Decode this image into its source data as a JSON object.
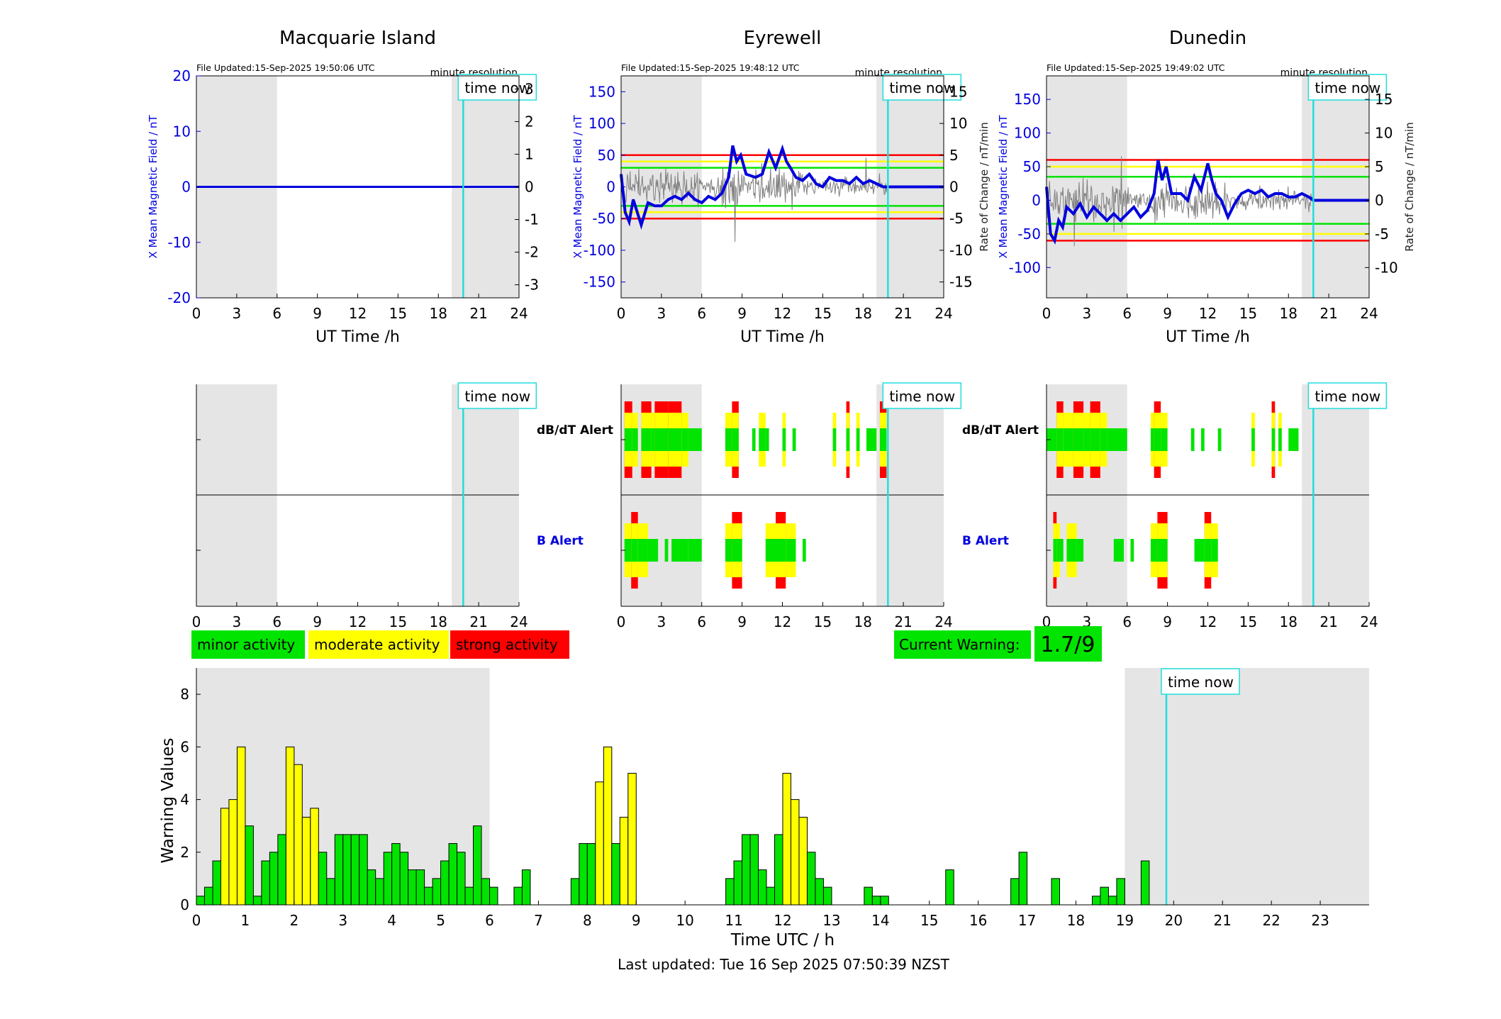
{
  "colors": {
    "shade": "#e5e5e5",
    "time_now": "#22dddd",
    "blue": "#0000dd",
    "minor": "#00e400",
    "moderate": "#ffff00",
    "strong": "#ff0000",
    "noise": "#808080"
  },
  "stations": [
    {
      "title": "Macquarie Island",
      "file_updated": "File Updated:15-Sep-2025 19:50:06 UTC",
      "resolution": "minute resolution",
      "ylabel_left": "X Mean Magnetic Field / nT",
      "ylabel_right": "",
      "xlabel": "UT Time /h",
      "ylim_left": [
        -20,
        20
      ],
      "yticks_left": [
        "20",
        "10",
        "0",
        "-10",
        "-20"
      ],
      "yticks_right": [
        "3",
        "2",
        "1",
        "0",
        "-1",
        "-2",
        "-3"
      ],
      "rate_ylim": [
        -3.4,
        3.4
      ],
      "threshold_lines": [],
      "has_data": false,
      "alert_labels": [
        "",
        ""
      ]
    },
    {
      "title": "Eyrewell",
      "file_updated": "File Updated:15-Sep-2025 19:48:12 UTC",
      "resolution": "minute resolution",
      "ylabel_left": "X Mean Magnetic Field / nT",
      "ylabel_right": "Rate of Change / nT/min",
      "xlabel": "UT Time /h",
      "ylim_left": [
        -175,
        175
      ],
      "yticks_left": [
        "150",
        "100",
        "50",
        "0",
        "-50",
        "-100",
        "-150"
      ],
      "yticks_right": [
        "15",
        "10",
        "5",
        "0",
        "-5",
        "-10",
        "-15"
      ],
      "rate_ylim": [
        -17.5,
        17.5
      ],
      "threshold_lines": [
        {
          "value": 50,
          "level": "strong"
        },
        {
          "value": -50,
          "level": "strong"
        },
        {
          "value": 40,
          "level": "moderate"
        },
        {
          "value": -40,
          "level": "moderate"
        },
        {
          "value": 30,
          "level": "minor"
        },
        {
          "value": -30,
          "level": "minor"
        }
      ],
      "has_data": true,
      "alert_labels": [
        "dB/dT Alert",
        "B Alert"
      ]
    },
    {
      "title": "Dunedin",
      "file_updated": "File Updated:15-Sep-2025 19:49:02 UTC",
      "resolution": "minute resolution",
      "ylabel_left": "X Mean Magnetic Field / nT",
      "ylabel_right": "Rate of Change / nT/min",
      "xlabel": "UT Time /h",
      "ylim_left": [
        -145,
        185
      ],
      "yticks_left": [
        "150",
        "100",
        "50",
        "0",
        "-50",
        "-100"
      ],
      "yticks_right": [
        "15",
        "10",
        "5",
        "0",
        "-5",
        "-10"
      ],
      "rate_ylim": [
        -14.5,
        18.5
      ],
      "threshold_lines": [
        {
          "value": 60,
          "level": "strong"
        },
        {
          "value": -60,
          "level": "strong"
        },
        {
          "value": 50,
          "level": "moderate"
        },
        {
          "value": -50,
          "level": "moderate"
        },
        {
          "value": 35,
          "level": "minor"
        },
        {
          "value": -35,
          "level": "minor"
        }
      ],
      "has_data": true,
      "alert_labels": [
        "dB/dT Alert",
        "B Alert"
      ]
    }
  ],
  "time_now_label": "time now",
  "time_now_hour": 19.85,
  "shade_ranges": [
    [
      0,
      6
    ],
    [
      19,
      24
    ]
  ],
  "xticks": [
    "0",
    "3",
    "6",
    "9",
    "12",
    "15",
    "18",
    "21",
    "24"
  ],
  "legend": {
    "minor": "minor activity",
    "moderate": "moderate activity",
    "strong": "strong activity"
  },
  "current_warning": {
    "label": "Current Warning:",
    "value": "1.7/9"
  },
  "chart_data": [
    {
      "type": "line",
      "station": "Eyrewell",
      "series": [
        {
          "values_x_hours": [
            0,
            0.3,
            0.6,
            0.9,
            1.2,
            1.5,
            2,
            2.5,
            3,
            3.5,
            4,
            4.5,
            5,
            5.5,
            6,
            6.5,
            7,
            7.5,
            8,
            8.3,
            8.6,
            8.9,
            9.3,
            10,
            10.5,
            11,
            11.5,
            12,
            12.3,
            12.6,
            13,
            13.5,
            14,
            14.5,
            15,
            15.5,
            16,
            16.5,
            17,
            17.5,
            18,
            18.5,
            19,
            19.5,
            19.85,
            24
          ],
          "values_y": [
            20,
            -40,
            -55,
            -20,
            -40,
            -60,
            -25,
            -30,
            -30,
            -20,
            -15,
            -20,
            -10,
            -20,
            -25,
            -15,
            -20,
            -10,
            15,
            65,
            40,
            50,
            20,
            15,
            20,
            55,
            30,
            60,
            40,
            30,
            15,
            10,
            20,
            5,
            0,
            15,
            10,
            10,
            5,
            15,
            5,
            10,
            5,
            0,
            0,
            0
          ]
        }
      ]
    },
    {
      "type": "line",
      "station": "Dunedin",
      "series": [
        {
          "values_x_hours": [
            0,
            0.3,
            0.6,
            0.9,
            1.2,
            1.5,
            2,
            2.5,
            3,
            3.5,
            4,
            4.5,
            5,
            5.5,
            6,
            6.5,
            7,
            7.5,
            8,
            8.3,
            8.6,
            8.9,
            9.3,
            10,
            10.5,
            11,
            11.5,
            12,
            12.3,
            12.6,
            13,
            13.5,
            14,
            14.5,
            15,
            15.5,
            16,
            16.5,
            17,
            17.5,
            18,
            18.5,
            19,
            19.5,
            19.85,
            24
          ],
          "values_y": [
            20,
            -50,
            -60,
            -30,
            -40,
            -10,
            -20,
            -5,
            -25,
            -10,
            -20,
            -30,
            -20,
            -30,
            -20,
            -10,
            -25,
            -15,
            10,
            60,
            30,
            50,
            10,
            10,
            0,
            35,
            15,
            55,
            30,
            10,
            0,
            -25,
            -5,
            10,
            15,
            10,
            15,
            5,
            10,
            10,
            5,
            5,
            10,
            5,
            0,
            0
          ]
        }
      ]
    },
    {
      "type": "bar",
      "title": "",
      "xlabel": "Time UTC / h",
      "ylabel": "Warning Values",
      "xlim": [
        0,
        24
      ],
      "ylim": [
        0,
        9
      ],
      "yticks": [
        0,
        2,
        4,
        6,
        8
      ],
      "xticks": [
        "0",
        "1",
        "2",
        "3",
        "4",
        "5",
        "6",
        "7",
        "8",
        "9",
        "10",
        "11",
        "12",
        "13",
        "14",
        "15",
        "16",
        "17",
        "18",
        "19",
        "20",
        "21",
        "22",
        "23"
      ],
      "bar_width_hours": 0.1667,
      "bars": [
        {
          "x": 0.083,
          "v": 0.33,
          "c": "minor"
        },
        {
          "x": 0.25,
          "v": 0.67,
          "c": "minor"
        },
        {
          "x": 0.417,
          "v": 1.67,
          "c": "minor"
        },
        {
          "x": 0.583,
          "v": 3.67,
          "c": "moderate"
        },
        {
          "x": 0.75,
          "v": 4.0,
          "c": "moderate"
        },
        {
          "x": 0.917,
          "v": 6.0,
          "c": "moderate"
        },
        {
          "x": 1.083,
          "v": 3.0,
          "c": "minor"
        },
        {
          "x": 1.25,
          "v": 0.33,
          "c": "minor"
        },
        {
          "x": 1.417,
          "v": 1.67,
          "c": "minor"
        },
        {
          "x": 1.583,
          "v": 2.0,
          "c": "minor"
        },
        {
          "x": 1.75,
          "v": 2.67,
          "c": "minor"
        },
        {
          "x": 1.917,
          "v": 6.0,
          "c": "moderate"
        },
        {
          "x": 2.083,
          "v": 5.33,
          "c": "moderate"
        },
        {
          "x": 2.25,
          "v": 3.33,
          "c": "moderate"
        },
        {
          "x": 2.417,
          "v": 3.67,
          "c": "moderate"
        },
        {
          "x": 2.583,
          "v": 2.0,
          "c": "minor"
        },
        {
          "x": 2.75,
          "v": 1.0,
          "c": "minor"
        },
        {
          "x": 2.917,
          "v": 2.67,
          "c": "minor"
        },
        {
          "x": 3.083,
          "v": 2.67,
          "c": "minor"
        },
        {
          "x": 3.25,
          "v": 2.67,
          "c": "minor"
        },
        {
          "x": 3.417,
          "v": 2.67,
          "c": "minor"
        },
        {
          "x": 3.583,
          "v": 1.33,
          "c": "minor"
        },
        {
          "x": 3.75,
          "v": 1.0,
          "c": "minor"
        },
        {
          "x": 3.917,
          "v": 2.0,
          "c": "minor"
        },
        {
          "x": 4.083,
          "v": 2.33,
          "c": "minor"
        },
        {
          "x": 4.25,
          "v": 2.0,
          "c": "minor"
        },
        {
          "x": 4.417,
          "v": 1.33,
          "c": "minor"
        },
        {
          "x": 4.583,
          "v": 1.33,
          "c": "minor"
        },
        {
          "x": 4.75,
          "v": 0.67,
          "c": "minor"
        },
        {
          "x": 4.917,
          "v": 1.0,
          "c": "minor"
        },
        {
          "x": 5.083,
          "v": 1.67,
          "c": "minor"
        },
        {
          "x": 5.25,
          "v": 2.33,
          "c": "minor"
        },
        {
          "x": 5.417,
          "v": 2.0,
          "c": "minor"
        },
        {
          "x": 5.583,
          "v": 0.67,
          "c": "minor"
        },
        {
          "x": 5.75,
          "v": 3.0,
          "c": "minor"
        },
        {
          "x": 5.917,
          "v": 1.0,
          "c": "minor"
        },
        {
          "x": 6.083,
          "v": 0.67,
          "c": "minor"
        },
        {
          "x": 6.583,
          "v": 0.67,
          "c": "minor"
        },
        {
          "x": 6.75,
          "v": 1.33,
          "c": "minor"
        },
        {
          "x": 7.75,
          "v": 1.0,
          "c": "minor"
        },
        {
          "x": 7.917,
          "v": 2.33,
          "c": "minor"
        },
        {
          "x": 8.083,
          "v": 2.33,
          "c": "minor"
        },
        {
          "x": 8.25,
          "v": 4.67,
          "c": "moderate"
        },
        {
          "x": 8.417,
          "v": 6.0,
          "c": "moderate"
        },
        {
          "x": 8.583,
          "v": 2.33,
          "c": "minor"
        },
        {
          "x": 8.75,
          "v": 3.33,
          "c": "moderate"
        },
        {
          "x": 8.917,
          "v": 5.0,
          "c": "moderate"
        },
        {
          "x": 10.917,
          "v": 1.0,
          "c": "minor"
        },
        {
          "x": 11.083,
          "v": 1.67,
          "c": "minor"
        },
        {
          "x": 11.25,
          "v": 2.67,
          "c": "minor"
        },
        {
          "x": 11.417,
          "v": 2.67,
          "c": "minor"
        },
        {
          "x": 11.583,
          "v": 1.33,
          "c": "minor"
        },
        {
          "x": 11.75,
          "v": 0.67,
          "c": "minor"
        },
        {
          "x": 11.917,
          "v": 2.67,
          "c": "minor"
        },
        {
          "x": 12.083,
          "v": 5.0,
          "c": "moderate"
        },
        {
          "x": 12.25,
          "v": 4.0,
          "c": "moderate"
        },
        {
          "x": 12.417,
          "v": 3.33,
          "c": "moderate"
        },
        {
          "x": 12.583,
          "v": 2.0,
          "c": "minor"
        },
        {
          "x": 12.75,
          "v": 1.0,
          "c": "minor"
        },
        {
          "x": 12.917,
          "v": 0.67,
          "c": "minor"
        },
        {
          "x": 13.75,
          "v": 0.67,
          "c": "minor"
        },
        {
          "x": 13.917,
          "v": 0.33,
          "c": "minor"
        },
        {
          "x": 14.083,
          "v": 0.33,
          "c": "minor"
        },
        {
          "x": 15.417,
          "v": 1.33,
          "c": "minor"
        },
        {
          "x": 16.75,
          "v": 1.0,
          "c": "minor"
        },
        {
          "x": 16.917,
          "v": 2.0,
          "c": "minor"
        },
        {
          "x": 17.583,
          "v": 1.0,
          "c": "minor"
        },
        {
          "x": 18.417,
          "v": 0.33,
          "c": "minor"
        },
        {
          "x": 18.583,
          "v": 0.67,
          "c": "minor"
        },
        {
          "x": 18.75,
          "v": 0.33,
          "c": "minor"
        },
        {
          "x": 18.917,
          "v": 1.0,
          "c": "minor"
        },
        {
          "x": 19.417,
          "v": 1.67,
          "c": "minor"
        }
      ]
    }
  ],
  "alerts": {
    "Eyrewell": {
      "dbdt": [
        [
          0.25,
          0.83,
          "strong"
        ],
        [
          0.83,
          1.25,
          "moderate"
        ],
        [
          1.5,
          2.25,
          "strong"
        ],
        [
          2.25,
          2.5,
          "moderate"
        ],
        [
          2.5,
          3.5,
          "strong"
        ],
        [
          3.5,
          4.5,
          "strong"
        ],
        [
          4.5,
          5.0,
          "moderate"
        ],
        [
          5.0,
          6.0,
          "minor"
        ],
        [
          7.75,
          8.25,
          "moderate"
        ],
        [
          8.25,
          8.75,
          "strong"
        ],
        [
          9.75,
          10.0,
          "minor"
        ],
        [
          10.25,
          10.75,
          "moderate"
        ],
        [
          10.75,
          11.0,
          "minor"
        ],
        [
          12.0,
          12.25,
          "moderate"
        ],
        [
          12.75,
          13.0,
          "minor"
        ],
        [
          15.75,
          16.0,
          "moderate"
        ],
        [
          16.75,
          17.0,
          "strong"
        ],
        [
          17.5,
          17.75,
          "moderate"
        ],
        [
          18.25,
          19.0,
          "minor"
        ],
        [
          19.25,
          19.75,
          "strong"
        ]
      ],
      "b": [
        [
          0.25,
          0.75,
          "moderate"
        ],
        [
          0.75,
          1.25,
          "strong"
        ],
        [
          1.25,
          2.0,
          "moderate"
        ],
        [
          2.0,
          2.75,
          "minor"
        ],
        [
          3.25,
          3.5,
          "minor"
        ],
        [
          3.75,
          4.25,
          "minor"
        ],
        [
          4.25,
          5.0,
          "minor"
        ],
        [
          5.0,
          6.0,
          "minor"
        ],
        [
          7.75,
          8.25,
          "moderate"
        ],
        [
          8.25,
          9.0,
          "strong"
        ],
        [
          10.75,
          11.5,
          "moderate"
        ],
        [
          11.5,
          12.25,
          "strong"
        ],
        [
          12.25,
          13.0,
          "moderate"
        ],
        [
          13.5,
          13.75,
          "minor"
        ]
      ]
    },
    "Dunedin": {
      "dbdt": [
        [
          0.0,
          0.75,
          "minor"
        ],
        [
          0.75,
          1.25,
          "strong"
        ],
        [
          1.25,
          2.0,
          "moderate"
        ],
        [
          2.0,
          2.75,
          "strong"
        ],
        [
          2.75,
          3.25,
          "moderate"
        ],
        [
          3.25,
          4.0,
          "strong"
        ],
        [
          4.0,
          4.5,
          "moderate"
        ],
        [
          4.5,
          6.0,
          "minor"
        ],
        [
          7.75,
          8.0,
          "moderate"
        ],
        [
          8.0,
          8.5,
          "strong"
        ],
        [
          8.5,
          9.0,
          "moderate"
        ],
        [
          10.75,
          11.0,
          "minor"
        ],
        [
          11.5,
          11.75,
          "minor"
        ],
        [
          12.75,
          13.0,
          "minor"
        ],
        [
          15.25,
          15.5,
          "moderate"
        ],
        [
          16.75,
          17.0,
          "strong"
        ],
        [
          17.25,
          17.5,
          "moderate"
        ],
        [
          18.0,
          18.75,
          "minor"
        ]
      ],
      "b": [
        [
          0.5,
          0.75,
          "strong"
        ],
        [
          0.75,
          1.0,
          "moderate"
        ],
        [
          1.0,
          1.25,
          "minor"
        ],
        [
          1.5,
          2.25,
          "moderate"
        ],
        [
          2.25,
          2.75,
          "minor"
        ],
        [
          5.0,
          5.75,
          "minor"
        ],
        [
          6.25,
          6.5,
          "minor"
        ],
        [
          7.75,
          8.25,
          "moderate"
        ],
        [
          8.25,
          9.0,
          "strong"
        ],
        [
          11.0,
          11.75,
          "minor"
        ],
        [
          11.75,
          12.25,
          "strong"
        ],
        [
          12.25,
          12.75,
          "moderate"
        ]
      ]
    }
  },
  "footer": "Last updated: Tue 16 Sep 2025 07:50:39 NZST"
}
